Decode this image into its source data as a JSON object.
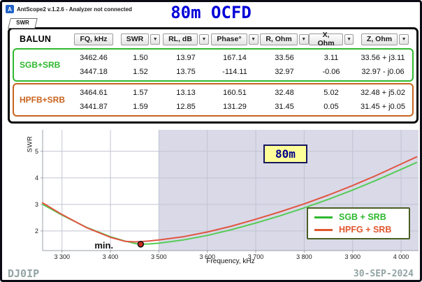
{
  "window": {
    "title": "AntScope2 v.1.2.6 - Analyzer not connected",
    "icon_text": "A",
    "tab": "SWR"
  },
  "page_title": "80m OCFD",
  "icons": {
    "dropdown": "▼"
  },
  "colors": {
    "title": "#0000d8",
    "grid": "#c2c4d2",
    "axis": "#9aa0aa",
    "footer": "#93a3a3",
    "legend_border": "#4a5f23",
    "band_label_bg": "#ffff99",
    "band_label_fg": "#00008b",
    "band_label_border": "#16165e"
  },
  "table": {
    "balun_header": "BALUN",
    "columns": [
      {
        "label": "FQ, kHz",
        "arrow": false
      },
      {
        "label": "SWR",
        "arrow": true
      },
      {
        "label": "RL, dB",
        "arrow": true
      },
      {
        "label": "Phase°",
        "arrow": true
      },
      {
        "label": "R, Ohm",
        "arrow": true
      },
      {
        "label": "X, Ohm",
        "arrow": true
      },
      {
        "label": "Z, Ohm",
        "arrow": true
      }
    ],
    "groups": [
      {
        "label": "SGB+SRB",
        "color": "#2eb82e",
        "rows": [
          [
            "3462.46",
            "1.50",
            "13.97",
            "167.14",
            "33.56",
            "3.11",
            "33.56 + j3.11"
          ],
          [
            "3447.18",
            "1.52",
            "13.75",
            "-114.11",
            "32.97",
            "-0.06",
            "32.97 - j0.06"
          ]
        ]
      },
      {
        "label": "HPFB+SRB",
        "color": "#c8641e",
        "rows": [
          [
            "3464.61",
            "1.57",
            "13.13",
            "160.51",
            "32.48",
            "5.02",
            "32.48 + j5.02"
          ],
          [
            "3441.87",
            "1.59",
            "12.85",
            "131.29",
            "31.45",
            "0.05",
            "31.45 + j0.05"
          ]
        ]
      }
    ]
  },
  "chart_data": {
    "type": "line",
    "title": "80m OCFD",
    "xlabel": "Frequency, kHz",
    "ylabel": "SWR",
    "xlim": [
      3260,
      4036
    ],
    "ylim": [
      1.26,
      5.81
    ],
    "xticks": [
      3300,
      3400,
      3500,
      3600,
      3700,
      3800,
      3900,
      4000
    ],
    "xtick_labels": [
      "3 300",
      "3 400",
      "3 500",
      "3 600",
      "3 700",
      "3 800",
      "3 900",
      "4 000"
    ],
    "yticks": [
      2,
      3,
      4,
      5
    ],
    "grid": true,
    "band_region": {
      "label": "80m",
      "from": 3500,
      "to": 4036,
      "fill": "#d9d9e8"
    },
    "series": [
      {
        "name": "SGB + SRB",
        "color": "#55cc55",
        "x": [
          3260,
          3300,
          3350,
          3400,
          3430,
          3450,
          3462,
          3480,
          3500,
          3550,
          3600,
          3650,
          3700,
          3750,
          3800,
          3850,
          3900,
          3950,
          4000,
          4032
        ],
        "y": [
          3.0,
          2.6,
          2.14,
          1.78,
          1.62,
          1.53,
          1.5,
          1.51,
          1.54,
          1.66,
          1.83,
          2.05,
          2.3,
          2.57,
          2.87,
          3.19,
          3.54,
          3.92,
          4.32,
          4.58
        ]
      },
      {
        "name": "HPFG + SRB",
        "color": "#e05540",
        "x": [
          3260,
          3300,
          3350,
          3400,
          3430,
          3450,
          3462,
          3480,
          3500,
          3550,
          3600,
          3650,
          3700,
          3750,
          3800,
          3850,
          3900,
          3950,
          4000,
          4032
        ],
        "y": [
          3.06,
          2.62,
          2.13,
          1.76,
          1.61,
          1.59,
          1.6,
          1.62,
          1.66,
          1.78,
          1.96,
          2.18,
          2.44,
          2.72,
          3.02,
          3.35,
          3.71,
          4.1,
          4.52,
          4.79
        ]
      }
    ],
    "legend": [
      {
        "label": "SGB + SRB",
        "color": "#2eb82e"
      },
      {
        "label": "HPFG + SRB",
        "color": "#e0572e"
      }
    ],
    "legend_position": "bottom-right",
    "min_marker": {
      "freq": 3462.46,
      "swr": 1.5,
      "label": "min.",
      "color": "#cc2a1e"
    }
  },
  "footer": {
    "left": "DJ0IP",
    "right": "30-SEP-2024"
  }
}
